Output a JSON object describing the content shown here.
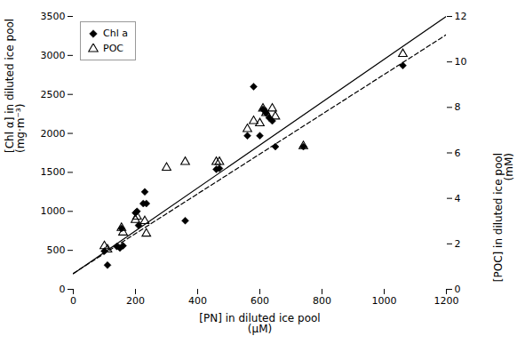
{
  "chart_data": {
    "type": "scatter",
    "xlabel": "[PN] in diluted ice pool\n(μM)",
    "ylabel": "[Chl α] in diluted ice pool\n(mg·m⁻³)",
    "y2label": "[POC] in diluted ice pool\n(mM)",
    "xlim": [
      0,
      1200
    ],
    "ylim": [
      0,
      3500
    ],
    "y2lim": [
      0,
      12
    ],
    "xticks": [
      0,
      200,
      400,
      600,
      800,
      1000,
      1200
    ],
    "yticks": [
      0,
      500,
      1000,
      1500,
      2000,
      2500,
      3000,
      3500
    ],
    "y2ticks": [
      0,
      2,
      4,
      6,
      8,
      10,
      12
    ],
    "grid": false,
    "legend": "upper left",
    "series": [
      {
        "type": "line",
        "line_style": "solid",
        "color": "#000000",
        "x": [
          0,
          1200
        ],
        "values": [
          200,
          3500
        ]
      },
      {
        "type": "line",
        "line_style": "dashed",
        "color": "#000000",
        "axis": "y2",
        "x": [
          0,
          1200
        ],
        "values": [
          0.7,
          11.2
        ]
      },
      {
        "name": "Chl a",
        "type": "scatter",
        "marker": "diamond",
        "color": "#000000",
        "x": [
          100,
          110,
          140,
          150,
          155,
          160,
          200,
          205,
          210,
          225,
          230,
          235,
          360,
          460,
          470,
          560,
          580,
          600,
          610,
          620,
          630,
          640,
          650,
          740,
          1060
        ],
        "values": [
          490,
          310,
          550,
          530,
          780,
          560,
          980,
          1000,
          820,
          1100,
          1250,
          1100,
          880,
          1540,
          1550,
          1970,
          2600,
          1970,
          2310,
          2260,
          2200,
          2160,
          1830,
          1830,
          2870
        ]
      },
      {
        "name": "POC",
        "type": "scatter",
        "marker": "triangle_open",
        "color": "#000000",
        "axis": "y2",
        "x": [
          100,
          110,
          155,
          160,
          200,
          205,
          230,
          235,
          300,
          360,
          460,
          470,
          560,
          580,
          600,
          610,
          620,
          640,
          650,
          740,
          1060
        ],
        "values": [
          1.9,
          1.75,
          2.7,
          2.5,
          3.05,
          3.2,
          3.0,
          2.45,
          5.35,
          5.6,
          5.6,
          5.6,
          7.05,
          7.4,
          7.3,
          7.95,
          7.75,
          7.95,
          7.6,
          6.3,
          10.35
        ]
      }
    ]
  }
}
